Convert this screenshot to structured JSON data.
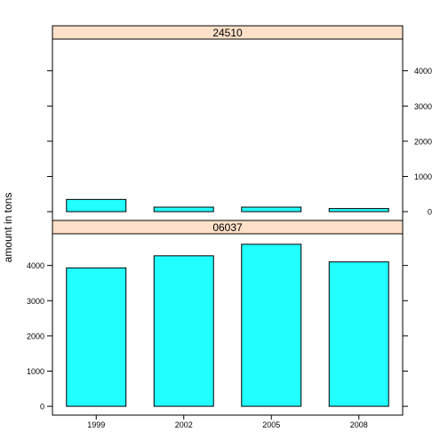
{
  "chart_data": {
    "type": "bar",
    "ylabel": "amount in tons",
    "categories": [
      "1999",
      "2002",
      "2005",
      "2008"
    ],
    "ylim": [
      -250,
      4900
    ],
    "yticks": [
      0,
      1000,
      2000,
      3000,
      4000
    ],
    "bar_color": "#22FFFF",
    "strip_color": "#FFE0C8",
    "panels": [
      {
        "name": "24510",
        "values": [
          347,
          128,
          128,
          88
        ],
        "tick_side": "right"
      },
      {
        "name": "06037",
        "values": [
          3931,
          4274,
          4602,
          4101
        ],
        "tick_side": "left"
      }
    ]
  }
}
